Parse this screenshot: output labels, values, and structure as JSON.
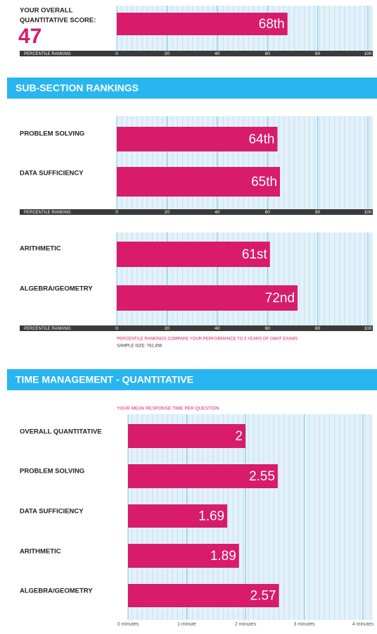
{
  "overall": {
    "label": [
      "YOUR OVERALL",
      "QUANTITATIVE SCORE:"
    ],
    "score": 47
  },
  "sections": [
    "SUB-SECTION RANKINGS",
    "TIME MANAGEMENT - QUANTITATIVE"
  ],
  "chart_data": [
    {
      "type": "bar",
      "orientation": "horizontal",
      "values": [
        68
      ],
      "value_labels": [
        "68th"
      ],
      "color": "#d81b6b",
      "x_label": "PERCENTILE RANKING",
      "xlim": [
        0,
        100
      ],
      "xticks": [
        0,
        20,
        40,
        60,
        80,
        100
      ],
      "grid": true
    },
    {
      "type": "bar",
      "orientation": "horizontal",
      "categories": [
        "PROBLEM SOLVING",
        "DATA SUFFICIENCY"
      ],
      "values": [
        64,
        65
      ],
      "value_labels": [
        "64th",
        "65th"
      ],
      "color": "#d81b6b",
      "x_label": "PERCENTILE RANKING",
      "xlim": [
        0,
        100
      ],
      "xticks": [
        0,
        20,
        40,
        60,
        80,
        100
      ],
      "grid": true
    },
    {
      "type": "bar",
      "orientation": "horizontal",
      "categories": [
        "ARITHMETIC",
        "ALGEBRA/GEOMETRY"
      ],
      "values": [
        61,
        72
      ],
      "value_labels": [
        "61st",
        "72nd"
      ],
      "color": "#d81b6b",
      "x_label": "PERCENTILE RANKING",
      "xlim": [
        0,
        100
      ],
      "xticks": [
        0,
        20,
        40,
        60,
        80,
        100
      ],
      "grid": true,
      "notes": [
        "PERCENTILE RANKINGS COMPARE YOUR PERFORMANCE TO 3 YEARS OF GMAT EXAMS",
        "SAMPLE SIZE: 782,458"
      ]
    },
    {
      "type": "bar",
      "orientation": "horizontal",
      "title": "YOUR MEAN RESPONSE TIME PER QUESTION",
      "categories": [
        "OVERALL QUANTITATIVE",
        "PROBLEM SOLVING",
        "DATA SUFFICIENCY",
        "ARITHMETIC",
        "ALGEBRA/GEOMETRY"
      ],
      "values": [
        2,
        2.55,
        1.69,
        1.89,
        2.57
      ],
      "color": "#d81b6b",
      "xlim": [
        0,
        4
      ],
      "xticks": [
        {
          "value": 0,
          "label": "0 minutes"
        },
        {
          "value": 1,
          "label": "1 minute"
        },
        {
          "value": 2,
          "label": "2 minutes"
        },
        {
          "value": 3,
          "label": "3 minutes"
        },
        {
          "value": 4,
          "label": "4 minutes"
        }
      ],
      "grid": true
    }
  ]
}
